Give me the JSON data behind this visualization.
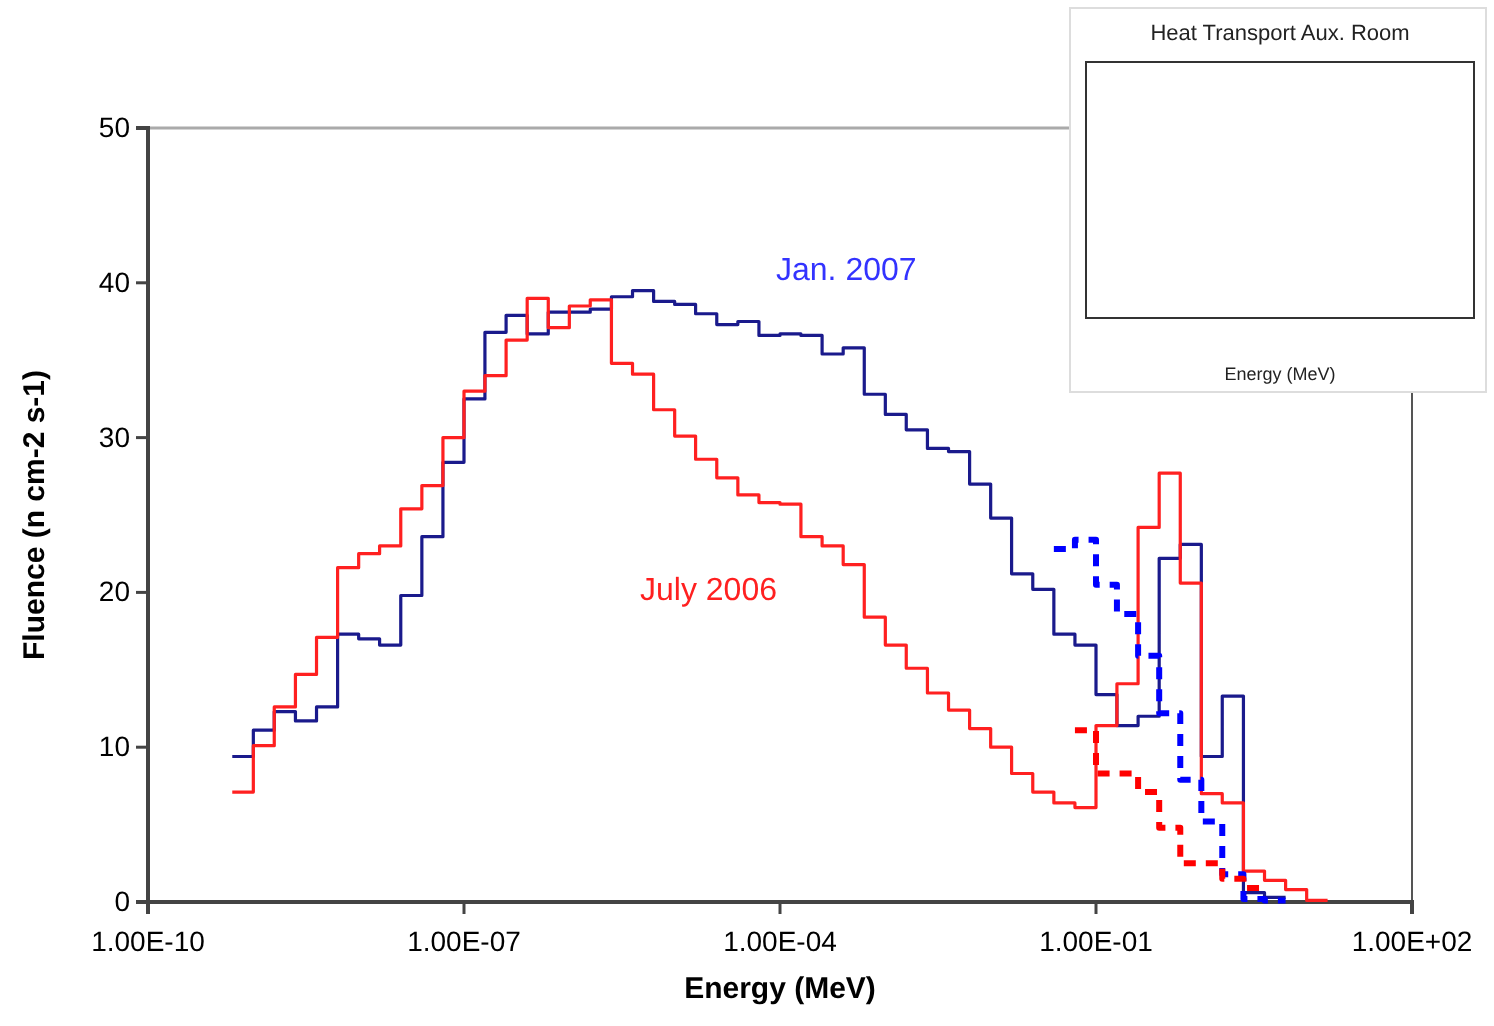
{
  "chart_data": {
    "type": "step",
    "xlabel": "Energy (MeV)",
    "ylabel": "Fluence (n cm-2 s-1)",
    "log": "x",
    "xlim": [
      1e-10,
      100
    ],
    "xticks": [
      {
        "value": 1e-10,
        "label": "1.00E-10"
      },
      {
        "value": 1e-07,
        "label": "1.00E-07"
      },
      {
        "value": 0.0001,
        "label": "1.00E-04"
      },
      {
        "value": 0.1,
        "label": "1.00E-01"
      },
      {
        "value": 100,
        "label": "1.00E+02"
      }
    ],
    "ylim": [
      0,
      50
    ],
    "yticks": [
      0,
      10,
      20,
      30,
      40,
      50
    ],
    "grid": false,
    "marker": "none",
    "annotations": [
      "Heat Transport Aux. Room",
      "Energy (MeV)"
    ],
    "series": [
      {
        "name": "Jan. 2007",
        "color": "#1a1a8c",
        "line_style": "solid",
        "x": [
          6.31e-10,
          1e-09,
          1.58e-09,
          2.51e-09,
          3.98e-09,
          6.31e-09,
          1e-08,
          1.58e-08,
          2.51e-08,
          3.98e-08,
          6.31e-08,
          1e-07,
          1.58e-07,
          2.51e-07,
          3.98e-07,
          6.31e-07,
          1e-06,
          1.58e-06,
          2.51e-06,
          3.98e-06,
          6.31e-06,
          1e-05,
          1.58e-05,
          2.51e-05,
          3.98e-05,
          6.31e-05,
          0.0001,
          0.000158,
          0.000251,
          0.000398,
          0.000631,
          0.001,
          0.00158,
          0.00251,
          0.00398,
          0.00631,
          0.01,
          0.0158,
          0.0251,
          0.0398,
          0.0631,
          0.1,
          0.158,
          0.251,
          0.398,
          0.631,
          1,
          1.58,
          2.51,
          3.98,
          6.31
        ],
        "values": [
          9.4,
          11.1,
          12.3,
          11.7,
          12.6,
          17.3,
          17.0,
          16.6,
          19.8,
          23.6,
          28.4,
          32.5,
          36.8,
          37.9,
          36.7,
          38.1,
          38.1,
          38.3,
          39.1,
          39.5,
          38.8,
          38.6,
          38.0,
          37.3,
          37.5,
          36.6,
          36.7,
          36.6,
          35.4,
          35.8,
          32.8,
          31.5,
          30.5,
          29.3,
          29.1,
          27.0,
          24.8,
          21.2,
          20.2,
          17.3,
          16.6,
          13.4,
          11.4,
          12.0,
          22.2,
          23.1,
          9.4,
          13.3,
          0.6,
          0.3,
          0.3
        ]
      },
      {
        "name": "July 2006",
        "color": "#ff2020",
        "line_style": "solid",
        "x": [
          6.31e-10,
          1e-09,
          1.58e-09,
          2.51e-09,
          3.98e-09,
          6.31e-09,
          1e-08,
          1.58e-08,
          2.51e-08,
          3.98e-08,
          6.31e-08,
          1e-07,
          1.58e-07,
          2.51e-07,
          3.98e-07,
          6.31e-07,
          1e-06,
          1.58e-06,
          2.51e-06,
          3.98e-06,
          6.31e-06,
          1e-05,
          1.58e-05,
          2.51e-05,
          3.98e-05,
          6.31e-05,
          0.0001,
          0.000158,
          0.000251,
          0.000398,
          0.000631,
          0.001,
          0.00158,
          0.00251,
          0.00398,
          0.00631,
          0.01,
          0.0158,
          0.0251,
          0.0398,
          0.0631,
          0.1,
          0.158,
          0.251,
          0.398,
          0.631,
          1,
          1.58,
          2.51,
          3.98,
          6.31,
          10,
          15.8
        ],
        "values": [
          7.1,
          10.1,
          12.6,
          14.7,
          17.1,
          21.6,
          22.5,
          23.0,
          25.4,
          26.9,
          30.0,
          33.0,
          34.0,
          36.3,
          39.0,
          37.1,
          38.5,
          38.9,
          34.8,
          34.1,
          31.8,
          30.1,
          28.6,
          27.4,
          26.3,
          25.8,
          25.7,
          23.6,
          23.0,
          21.8,
          18.4,
          16.6,
          15.1,
          13.5,
          12.4,
          11.2,
          10.0,
          8.3,
          7.1,
          6.4,
          6.1,
          11.4,
          14.1,
          24.2,
          27.7,
          20.6,
          7.0,
          6.4,
          2.0,
          1.4,
          0.8,
          0.1,
          0.1
        ]
      },
      {
        "color": "#0000ff",
        "line_style": "dashed",
        "x": [
          0.0398,
          0.0631,
          0.1,
          0.158,
          0.251,
          0.398,
          0.631,
          1,
          1.58,
          2.51,
          3.98,
          6.31
        ],
        "values": [
          22.8,
          23.4,
          20.5,
          18.6,
          15.9,
          12.2,
          7.9,
          5.2,
          1.8,
          0.2,
          0.1,
          0.1
        ]
      },
      {
        "color": "#ff0000",
        "line_style": "dashed",
        "x": [
          0.0631,
          0.1,
          0.158,
          0.251,
          0.398,
          0.631,
          1,
          1.58,
          2.51,
          3.98
        ],
        "values": [
          11.1,
          8.3,
          8.3,
          7.1,
          4.8,
          2.5,
          2.5,
          1.5,
          0.9,
          0.9
        ]
      }
    ]
  }
}
